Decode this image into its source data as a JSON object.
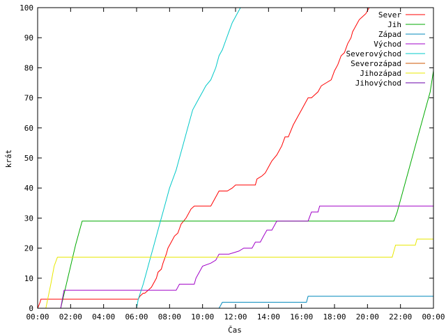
{
  "chart_data": {
    "type": "line",
    "title": "",
    "xlabel": "Čas",
    "ylabel": "krát",
    "xlim": [
      0,
      24
    ],
    "ylim": [
      0,
      100
    ],
    "x_ticks": [
      {
        "value": 0,
        "label": "00:00"
      },
      {
        "value": 2,
        "label": "02:00"
      },
      {
        "value": 4,
        "label": "04:00"
      },
      {
        "value": 6,
        "label": "06:00"
      },
      {
        "value": 8,
        "label": "08:00"
      },
      {
        "value": 10,
        "label": "10:00"
      },
      {
        "value": 12,
        "label": "12:00"
      },
      {
        "value": 14,
        "label": "14:00"
      },
      {
        "value": 16,
        "label": "16:00"
      },
      {
        "value": 18,
        "label": "18:00"
      },
      {
        "value": 20,
        "label": "20:00"
      },
      {
        "value": 22,
        "label": "22:00"
      },
      {
        "value": 24,
        "label": "00:00"
      }
    ],
    "y_ticks": [
      0,
      10,
      20,
      30,
      40,
      50,
      60,
      70,
      80,
      90,
      100
    ],
    "grid": false,
    "legend_position": "top-right",
    "series": [
      {
        "name": "Sever",
        "color": "#ff0000",
        "x": [
          0,
          0.15,
          0.2,
          0.3,
          6.1,
          6.2,
          6.4,
          6.5,
          6.7,
          6.9,
          7.0,
          7.2,
          7.3,
          7.5,
          7.6,
          7.8,
          7.9,
          8.1,
          8.3,
          8.5,
          8.7,
          9.0,
          9.3,
          9.5,
          10.5,
          10.9,
          11.0,
          11.5,
          11.8,
          12.0,
          13.2,
          13.3,
          13.6,
          13.8,
          14.0,
          14.2,
          14.5,
          14.8,
          15.0,
          15.2,
          15.5,
          15.8,
          16.0,
          16.2,
          16.4,
          16.6,
          17.0,
          17.2,
          17.5,
          17.8,
          18.0,
          18.2,
          18.4,
          18.6,
          18.8,
          19.0,
          19.1,
          19.3,
          19.5,
          19.7,
          19.9,
          20.1,
          20.3
        ],
        "y": [
          0,
          2,
          3,
          3,
          3,
          4,
          5,
          5,
          6,
          7,
          8,
          10,
          12,
          13,
          15,
          18,
          20,
          22,
          24,
          25,
          28,
          30,
          33,
          34,
          34,
          38,
          39,
          39,
          40,
          41,
          41,
          43,
          44,
          45,
          47,
          49,
          51,
          54,
          57,
          57,
          61,
          64,
          66,
          68,
          70,
          70,
          72,
          74,
          75,
          76,
          79,
          81,
          84,
          85,
          88,
          90,
          92,
          94,
          96,
          97,
          98,
          100,
          100
        ]
      },
      {
        "name": "Jih",
        "color": "#00aa00",
        "x": [
          0,
          1.4,
          1.7,
          2.0,
          2.3,
          2.6,
          2.7,
          21.6,
          21.8,
          22.2,
          22.6,
          23.0,
          23.4,
          23.8,
          24.0
        ],
        "y": [
          0,
          0,
          7,
          14,
          21,
          27,
          29,
          29,
          32,
          40,
          48,
          56,
          64,
          72,
          79
        ]
      },
      {
        "name": "Západ",
        "color": "#0088bb",
        "x": [
          0,
          11.0,
          11.1,
          11.2,
          16.3,
          16.4,
          24.0
        ],
        "y": [
          0,
          0,
          1,
          2,
          2,
          4,
          4
        ]
      },
      {
        "name": "Východ",
        "color": "#a000c8",
        "x": [
          0,
          1.4,
          1.5,
          1.6,
          6.2,
          6.5,
          7.4,
          7.5,
          8.4,
          8.6,
          9.5,
          9.6,
          9.8,
          10.0,
          10.5,
          10.8,
          11.0,
          11.4,
          11.6,
          12.2,
          12.5,
          13.0,
          13.2,
          13.5,
          13.7,
          13.9,
          14.2,
          14.5,
          15.2,
          15.3,
          16.4,
          16.6,
          17.0,
          17.1,
          24.0
        ],
        "y": [
          0,
          0,
          3,
          6,
          6,
          6,
          6,
          6,
          6,
          8,
          8,
          10,
          12,
          14,
          15,
          16,
          18,
          18,
          18,
          19,
          20,
          20,
          22,
          22,
          24,
          26,
          26,
          29,
          29,
          29,
          29,
          32,
          32,
          34,
          34
        ]
      },
      {
        "name": "Severovýchod",
        "color": "#00c8c8",
        "x": [
          0,
          6.0,
          6.1,
          6.4,
          6.6,
          6.8,
          7.0,
          7.2,
          7.4,
          7.6,
          7.8,
          8.0,
          8.2,
          8.4,
          8.6,
          8.8,
          9.0,
          9.2,
          9.4,
          9.6,
          9.8,
          10.0,
          10.2,
          10.5,
          10.8,
          11.0,
          11.2,
          11.4,
          11.6,
          11.8,
          12.0,
          12.2,
          12.3
        ],
        "y": [
          0,
          0,
          3,
          8,
          12,
          16,
          20,
          24,
          28,
          32,
          36,
          40,
          43,
          46,
          50,
          54,
          58,
          62,
          66,
          68,
          70,
          72,
          74,
          76,
          80,
          84,
          86,
          89,
          92,
          95,
          97,
          99,
          100
        ]
      },
      {
        "name": "Severozápad",
        "color": "#cc5500",
        "x": [],
        "y": []
      },
      {
        "name": "Jihozápad",
        "color": "#e8e800",
        "x": [
          0,
          0.5,
          0.8,
          1.0,
          1.2,
          21.5,
          21.7,
          22.0,
          22.9,
          23.0,
          24.0
        ],
        "y": [
          0,
          0,
          8,
          14,
          17,
          17,
          21,
          21,
          21,
          23,
          23
        ]
      },
      {
        "name": "Jihovýchod",
        "color": "#6a00aa",
        "x": [],
        "y": []
      }
    ]
  }
}
